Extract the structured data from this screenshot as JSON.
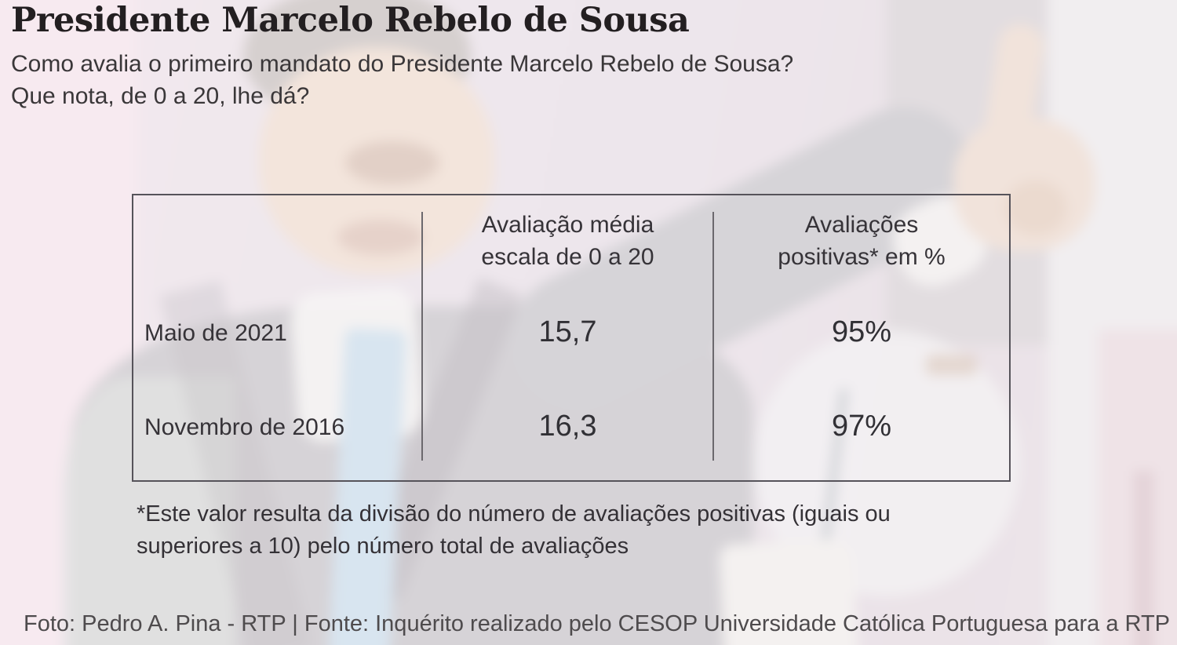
{
  "colors": {
    "background_tint": "#ece4ea",
    "title_text": "#231f21",
    "body_text": "#3a3739",
    "table_border": "#56535a",
    "credit_text": "#4e4b4d",
    "tie_blue": "#cfe1ee"
  },
  "header": {
    "title": "Presidente Marcelo Rebelo de Sousa",
    "question_line1": "Como avalia o primeiro mandato do Presidente Marcelo Rebelo de Sousa?",
    "question_line2": "Que nota, de 0 a 20, lhe dá?"
  },
  "table": {
    "col_headers": [
      {
        "line1": "Avaliação média",
        "line2": "escala de 0 a 20"
      },
      {
        "line1": "Avaliações",
        "line2": "positivas* em %"
      }
    ],
    "rows": [
      {
        "label": "Maio de 2021",
        "media": "15,7",
        "positivas": "95%"
      },
      {
        "label": "Novembro de 2016",
        "media": "16,3",
        "positivas": "97%"
      }
    ]
  },
  "footnote": {
    "line1": "*Este valor resulta da divisão do número de avaliações positivas (iguais ou",
    "line2": "superiores a 10) pelo número total de avaliações"
  },
  "credit": "Foto: Pedro A. Pina - RTP | Fonte: Inquérito realizado pelo CESOP Universidade Católica Portuguesa para a RTP",
  "chart_data": {
    "type": "table",
    "title": "Presidente Marcelo Rebelo de Sousa",
    "subtitle": "Como avalia o primeiro mandato do Presidente Marcelo Rebelo de Sousa? Que nota, de 0 a 20, lhe dá?",
    "categories": [
      "Maio de 2021",
      "Novembro de 2016"
    ],
    "series": [
      {
        "name": "Avaliação média escala de 0 a 20",
        "values": [
          15.7,
          16.3
        ]
      },
      {
        "name": "Avaliações positivas em %",
        "values": [
          95,
          97
        ]
      }
    ],
    "footnote": "*Este valor resulta da divisão do número de avaliações positivas (iguais ou superiores a 10) pelo número total de avaliações",
    "source": "Inquérito realizado pelo CESOP Universidade Católica Portuguesa para a RTP",
    "photo_credit": "Foto: Pedro A. Pina - RTP"
  }
}
